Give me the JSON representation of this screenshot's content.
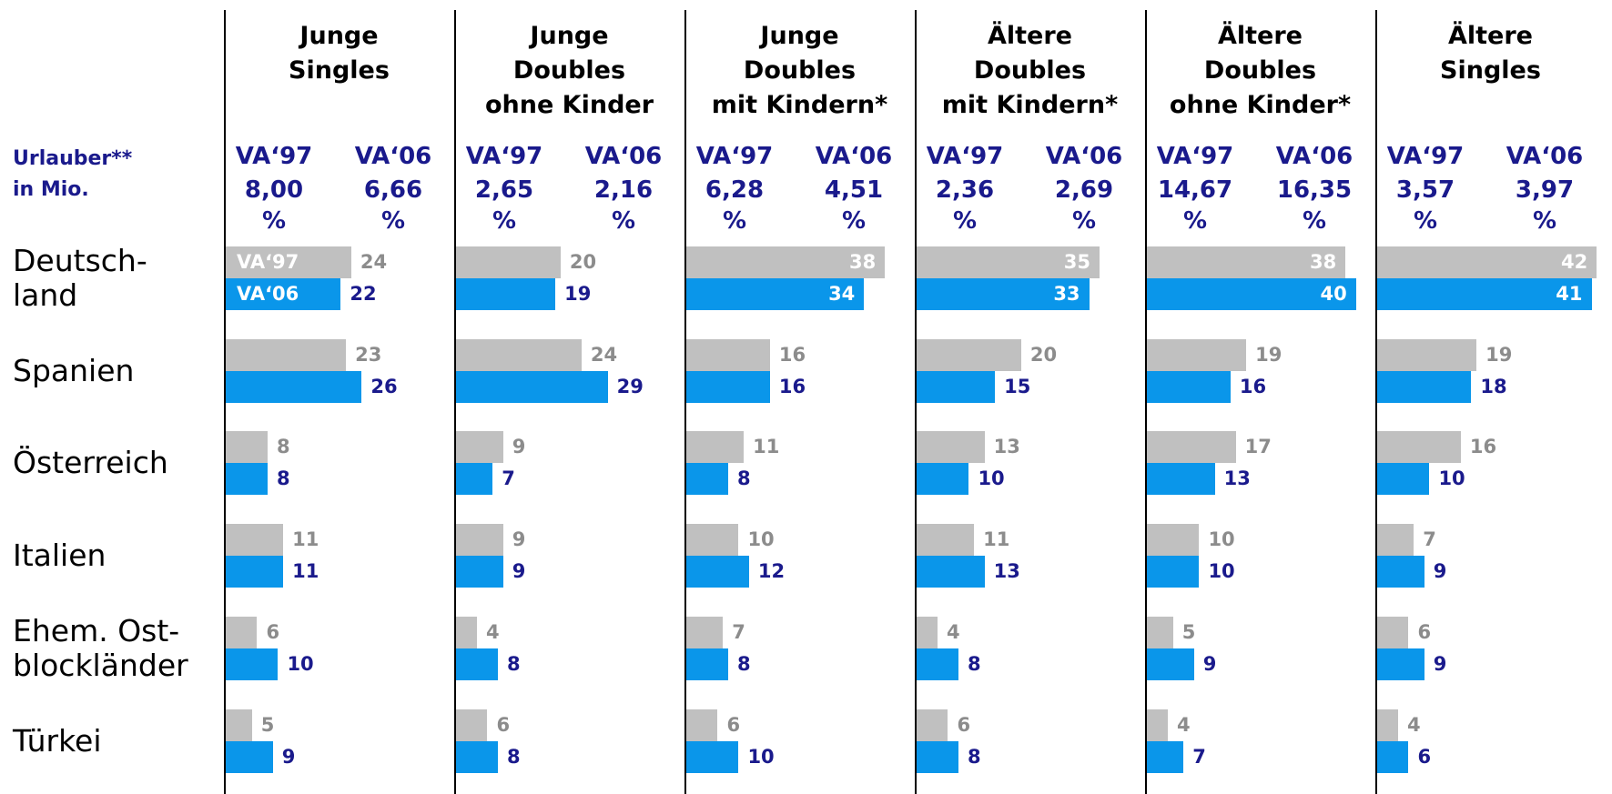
{
  "chart_data": {
    "type": "bar",
    "orientation": "horizontal",
    "row_header": "Urlauber**\nin Mio.",
    "categories": [
      "Deutsch-\nland",
      "Spanien",
      "Österreich",
      "Italien",
      "Ehem. Ost-\nblockländer",
      "Türkei"
    ],
    "xlim": [
      0,
      43
    ],
    "panels": [
      {
        "title": "Junge\nSingles",
        "series": [
          {
            "name": "VA‘97",
            "color": "#c0c0c0",
            "total": 8.0,
            "total_label": "8,00\n%",
            "values": [
              24,
              23,
              8,
              11,
              6,
              5
            ]
          },
          {
            "name": "VA‘06",
            "color": "#0a96ea",
            "total": 6.66,
            "total_label": "6,66\n%",
            "values": [
              22,
              26,
              8,
              11,
              10,
              9
            ]
          }
        ]
      },
      {
        "title": "Junge\nDoubles\nohne Kinder",
        "series": [
          {
            "name": "VA‘97",
            "color": "#c0c0c0",
            "total": 2.65,
            "total_label": "2,65\n%",
            "values": [
              20,
              24,
              9,
              9,
              4,
              6
            ]
          },
          {
            "name": "VA‘06",
            "color": "#0a96ea",
            "total": 2.16,
            "total_label": "2,16\n%",
            "values": [
              19,
              29,
              7,
              9,
              8,
              8
            ]
          }
        ]
      },
      {
        "title": "Junge\nDoubles\nmit Kindern*",
        "series": [
          {
            "name": "VA‘97",
            "color": "#c0c0c0",
            "total": 6.28,
            "total_label": "6,28\n%",
            "values": [
              38,
              16,
              11,
              10,
              7,
              6
            ]
          },
          {
            "name": "VA‘06",
            "color": "#0a96ea",
            "total": 4.51,
            "total_label": "4,51\n%",
            "values": [
              34,
              16,
              8,
              12,
              8,
              10
            ]
          }
        ]
      },
      {
        "title": "Ältere\nDoubles\nmit Kindern*",
        "series": [
          {
            "name": "VA‘97",
            "color": "#c0c0c0",
            "total": 2.36,
            "total_label": "2,36\n%",
            "values": [
              35,
              20,
              13,
              11,
              4,
              6
            ]
          },
          {
            "name": "VA‘06",
            "color": "#0a96ea",
            "total": 2.69,
            "total_label": "2,69\n%",
            "values": [
              33,
              15,
              10,
              13,
              8,
              8
            ]
          }
        ]
      },
      {
        "title": "Ältere\nDoubles\nohne Kinder*",
        "series": [
          {
            "name": "VA‘97",
            "color": "#c0c0c0",
            "total": 14.67,
            "total_label": "14,67\n%",
            "values": [
              38,
              19,
              17,
              10,
              5,
              4
            ]
          },
          {
            "name": "VA‘06",
            "color": "#0a96ea",
            "total": 16.35,
            "total_label": "16,35\n%",
            "values": [
              40,
              16,
              13,
              10,
              9,
              7
            ]
          }
        ]
      },
      {
        "title": "Ältere\nSingles",
        "series": [
          {
            "name": "VA‘97",
            "color": "#c0c0c0",
            "total": 3.57,
            "total_label": "3,57\n%",
            "values": [
              42,
              19,
              16,
              7,
              6,
              4
            ]
          },
          {
            "name": "VA‘06",
            "color": "#0a96ea",
            "total": 3.97,
            "total_label": "3,97\n%",
            "values": [
              41,
              18,
              10,
              9,
              9,
              6
            ]
          }
        ]
      }
    ]
  }
}
